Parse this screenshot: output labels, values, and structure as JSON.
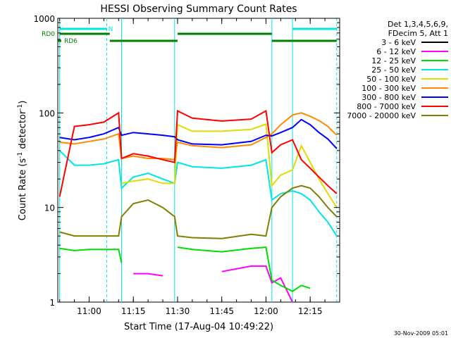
{
  "chart_data": {
    "type": "line",
    "title": "HESSI Observing Summary Count Rates",
    "xlabel": "Start Time (17-Aug-04 10:49:22)",
    "ylabel_main": "Count Rate (s",
    "ylabel_sup1": "-1",
    "ylabel_mid": " detector",
    "ylabel_sup2": "-1",
    "ylabel_end": ")",
    "yscale": "log",
    "ylim": [
      1,
      1000
    ],
    "xlim": [
      "10:49:22",
      "12:25:00"
    ],
    "x_ticks": [
      "11:00",
      "11:15",
      "11:30",
      "11:45",
      "12:00",
      "12:15"
    ],
    "y_ticks": [
      "1",
      "10",
      "100",
      "1000"
    ],
    "legend_title_1": "Det 1,3,4,5,6,9,",
    "legend_title_2": "FDecim 5, Att 1",
    "legend_position": "right",
    "date_stamp": "30-Nov-2009 05:01",
    "flags": {
      "rd0_label": "RD0",
      "rd6_label": "RD6",
      "n_label": "N",
      "n_color": "#00e5e5",
      "rd_color": "#007f00",
      "n_segments": [
        [
          "10:50",
          "11:06"
        ],
        [
          "12:09",
          "12:24"
        ]
      ],
      "rd0_segments": [
        [
          "10:50",
          "11:07"
        ],
        [
          "11:30",
          "12:02"
        ]
      ],
      "rd6_segments": [
        [
          "11:07",
          "11:30"
        ],
        [
          "12:02",
          "12:24"
        ]
      ]
    },
    "cyan_markers": {
      "solid": [
        "10:50",
        "11:11",
        "11:29",
        "12:02",
        "12:09"
      ],
      "dashed": [
        "11:06",
        "12:24"
      ]
    },
    "x": [
      "10:50",
      "10:55",
      "11:00",
      "11:05",
      "11:10",
      "11:11",
      "11:15",
      "11:20",
      "11:25",
      "11:29",
      "11:30",
      "11:35",
      "11:45",
      "11:55",
      "12:00",
      "12:02",
      "12:05",
      "12:09",
      "12:12",
      "12:15",
      "12:18",
      "12:21",
      "12:24"
    ],
    "series": [
      {
        "name": "3 - 6 keV",
        "color": "#000000",
        "values": [
          null,
          null,
          null,
          null,
          null,
          null,
          null,
          null,
          null,
          null,
          null,
          null,
          null,
          null,
          null,
          null,
          null,
          null,
          null,
          null,
          null,
          null,
          null
        ]
      },
      {
        "name": "6 - 12 keV",
        "color": "#ff00ff",
        "values": [
          null,
          null,
          null,
          null,
          null,
          null,
          2.0,
          2.0,
          1.9,
          null,
          null,
          null,
          2.1,
          2.4,
          2.4,
          1.6,
          1.8,
          1.0,
          null,
          null,
          null,
          null,
          null
        ]
      },
      {
        "name": "12 - 25 keV",
        "color": "#00dd00",
        "values": [
          3.7,
          3.5,
          3.6,
          3.6,
          3.6,
          2.6,
          null,
          null,
          null,
          null,
          3.8,
          3.6,
          3.4,
          3.7,
          3.8,
          1.7,
          1.5,
          1.3,
          1.5,
          1.4,
          null,
          null,
          null
        ]
      },
      {
        "name": "25 - 50 keV",
        "color": "#00e5e5",
        "values": [
          40,
          28,
          28,
          29,
          32,
          16,
          21,
          23,
          20,
          18,
          30,
          27,
          26,
          28,
          32,
          12,
          14,
          15,
          14,
          12,
          9,
          7,
          5
        ]
      },
      {
        "name": "50 - 100 keV",
        "color": "#dddd00",
        "values": [
          null,
          null,
          null,
          null,
          null,
          18,
          19,
          20,
          18,
          18,
          75,
          64,
          64,
          67,
          76,
          17,
          22,
          25,
          45,
          30,
          20,
          14,
          10
        ]
      },
      {
        "name": "100 - 300 keV",
        "color": "#ff8c00",
        "values": [
          49,
          47,
          50,
          53,
          60,
          33,
          35,
          33,
          33,
          32,
          49,
          45,
          43,
          46,
          55,
          60,
          75,
          95,
          100,
          92,
          83,
          72,
          58
        ]
      },
      {
        "name": "300 - 800 keV",
        "color": "#0000ff",
        "values": [
          55,
          52,
          55,
          60,
          70,
          58,
          62,
          60,
          58,
          56,
          52,
          47,
          46,
          50,
          58,
          57,
          62,
          70,
          85,
          75,
          62,
          53,
          42
        ]
      },
      {
        "name": "800 - 7000 keV",
        "color": "#ff0000",
        "values": [
          13,
          72,
          75,
          80,
          100,
          33,
          37,
          35,
          32,
          30,
          105,
          88,
          82,
          86,
          105,
          38,
          46,
          52,
          32,
          26,
          21,
          17,
          14
        ]
      },
      {
        "name": "7000 - 20000 keV",
        "color": "#808000",
        "values": [
          5.5,
          5.0,
          5.0,
          5.0,
          5.0,
          8.0,
          11,
          12,
          10,
          8.0,
          5.0,
          4.8,
          4.7,
          5.2,
          5.0,
          10,
          13,
          16,
          17,
          16,
          13,
          10,
          8
        ]
      }
    ]
  }
}
